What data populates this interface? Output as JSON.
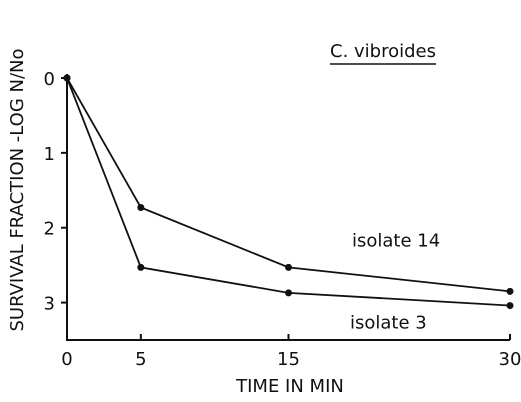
{
  "chart_data": {
    "type": "line",
    "title": "C. vibroides",
    "x_label": "TIME IN MIN",
    "y_label": "SURVIVAL FRACTION -LOG N/No",
    "x": [
      0,
      5,
      15,
      30
    ],
    "series": [
      {
        "name": "isolate 14",
        "color": "#111111",
        "values": [
          0,
          1.73,
          2.53,
          2.85
        ]
      },
      {
        "name": "isolate 3",
        "color": "#111111",
        "values": [
          0,
          2.53,
          2.87,
          3.04
        ]
      }
    ],
    "xlim": [
      0,
      30
    ],
    "xticks": [
      0,
      5,
      15,
      30
    ],
    "ylim": [
      0,
      3.5
    ],
    "yticks": [
      0,
      1,
      2,
      3
    ],
    "y_inverted": true,
    "grid": false
  }
}
